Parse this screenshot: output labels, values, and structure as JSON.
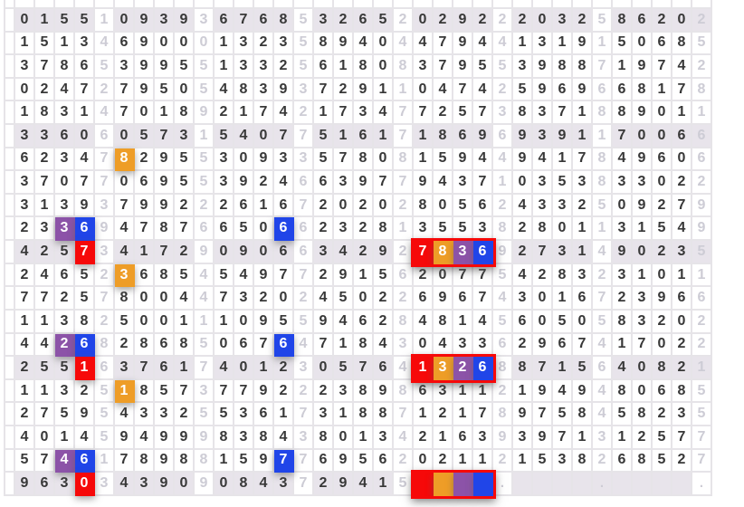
{
  "grid": {
    "columns_per_row": 35,
    "group_size": 4,
    "separator_stride": 5,
    "ellipsis_char": ".",
    "rows": [
      "01551093936768532652029222032586202",
      "15134690001323589404479441319150685",
      "37865399551332561808379553988719742",
      "02472795054839372911047425969668178",
      "18314701892174217347725738371889011",
      "33606057315407751617186969391170066",
      "62347829553093357808159449417849606",
      "37077069553924663977943710353833022",
      "31393799222616720202805624332509279",
      "23369478766506623281355382801131549",
      "42573417290906634292783692731490235",
      "24652368545497729156207754283231011",
      "77257800447320245022696743016723966",
      "11382500111095594628481456050583202",
      "44268286850676471843043362967417022",
      "25516376174012305764132688715640821",
      "11325185737792223898631121949480685",
      "27595433255361731887121789758458235",
      "40145949998384380134216393971312577",
      "57461789881597769562021121538268527",
      "96303439090843729415    .    .    ."
    ],
    "shaded_rows": [
      1,
      6,
      11,
      16,
      21
    ],
    "extra_shaded_cells": [
      {
        "row": 21,
        "col": 30
      }
    ],
    "highlights": [
      {
        "row": 7,
        "col": 6,
        "color": "orange"
      },
      {
        "row": 10,
        "col": 3,
        "color": "purple"
      },
      {
        "row": 10,
        "col": 4,
        "color": "blue"
      },
      {
        "row": 10,
        "col": 14,
        "color": "blue"
      },
      {
        "row": 11,
        "col": 4,
        "color": "red"
      },
      {
        "row": 11,
        "col": 21,
        "color": "red"
      },
      {
        "row": 11,
        "col": 22,
        "color": "orange"
      },
      {
        "row": 11,
        "col": 23,
        "color": "purple"
      },
      {
        "row": 11,
        "col": 24,
        "color": "blue"
      },
      {
        "row": 12,
        "col": 6,
        "color": "orange"
      },
      {
        "row": 15,
        "col": 3,
        "color": "purple"
      },
      {
        "row": 15,
        "col": 4,
        "color": "blue"
      },
      {
        "row": 15,
        "col": 14,
        "color": "blue"
      },
      {
        "row": 16,
        "col": 4,
        "color": "red"
      },
      {
        "row": 16,
        "col": 21,
        "color": "red"
      },
      {
        "row": 16,
        "col": 22,
        "color": "orange"
      },
      {
        "row": 16,
        "col": 23,
        "color": "purple"
      },
      {
        "row": 16,
        "col": 24,
        "color": "blue"
      },
      {
        "row": 17,
        "col": 6,
        "color": "orange"
      },
      {
        "row": 20,
        "col": 3,
        "color": "purple"
      },
      {
        "row": 20,
        "col": 4,
        "color": "blue"
      },
      {
        "row": 20,
        "col": 14,
        "color": "blue"
      },
      {
        "row": 21,
        "col": 4,
        "color": "red"
      },
      {
        "row": 21,
        "col": 21,
        "color": "red"
      },
      {
        "row": 21,
        "col": 22,
        "color": "orange"
      },
      {
        "row": 21,
        "col": 23,
        "color": "purple"
      },
      {
        "row": 21,
        "col": 24,
        "color": "blue"
      }
    ],
    "outlined_groups": [
      {
        "row": 11,
        "col_start": 21,
        "col_end": 24
      },
      {
        "row": 16,
        "col_start": 21,
        "col_end": 24
      },
      {
        "row": 21,
        "col_start": 21,
        "col_end": 24
      }
    ]
  },
  "colors": {
    "red": "#f60909",
    "orange": "#ee9d27",
    "purple": "#8c53a8",
    "blue": "#2045e8",
    "shaded_row_bg": "#e8e4eb",
    "grid_line": "#e6e4e8",
    "digit": "#383838",
    "faded_digit": "#cdccd5",
    "cell_bg": "#ffffff"
  }
}
